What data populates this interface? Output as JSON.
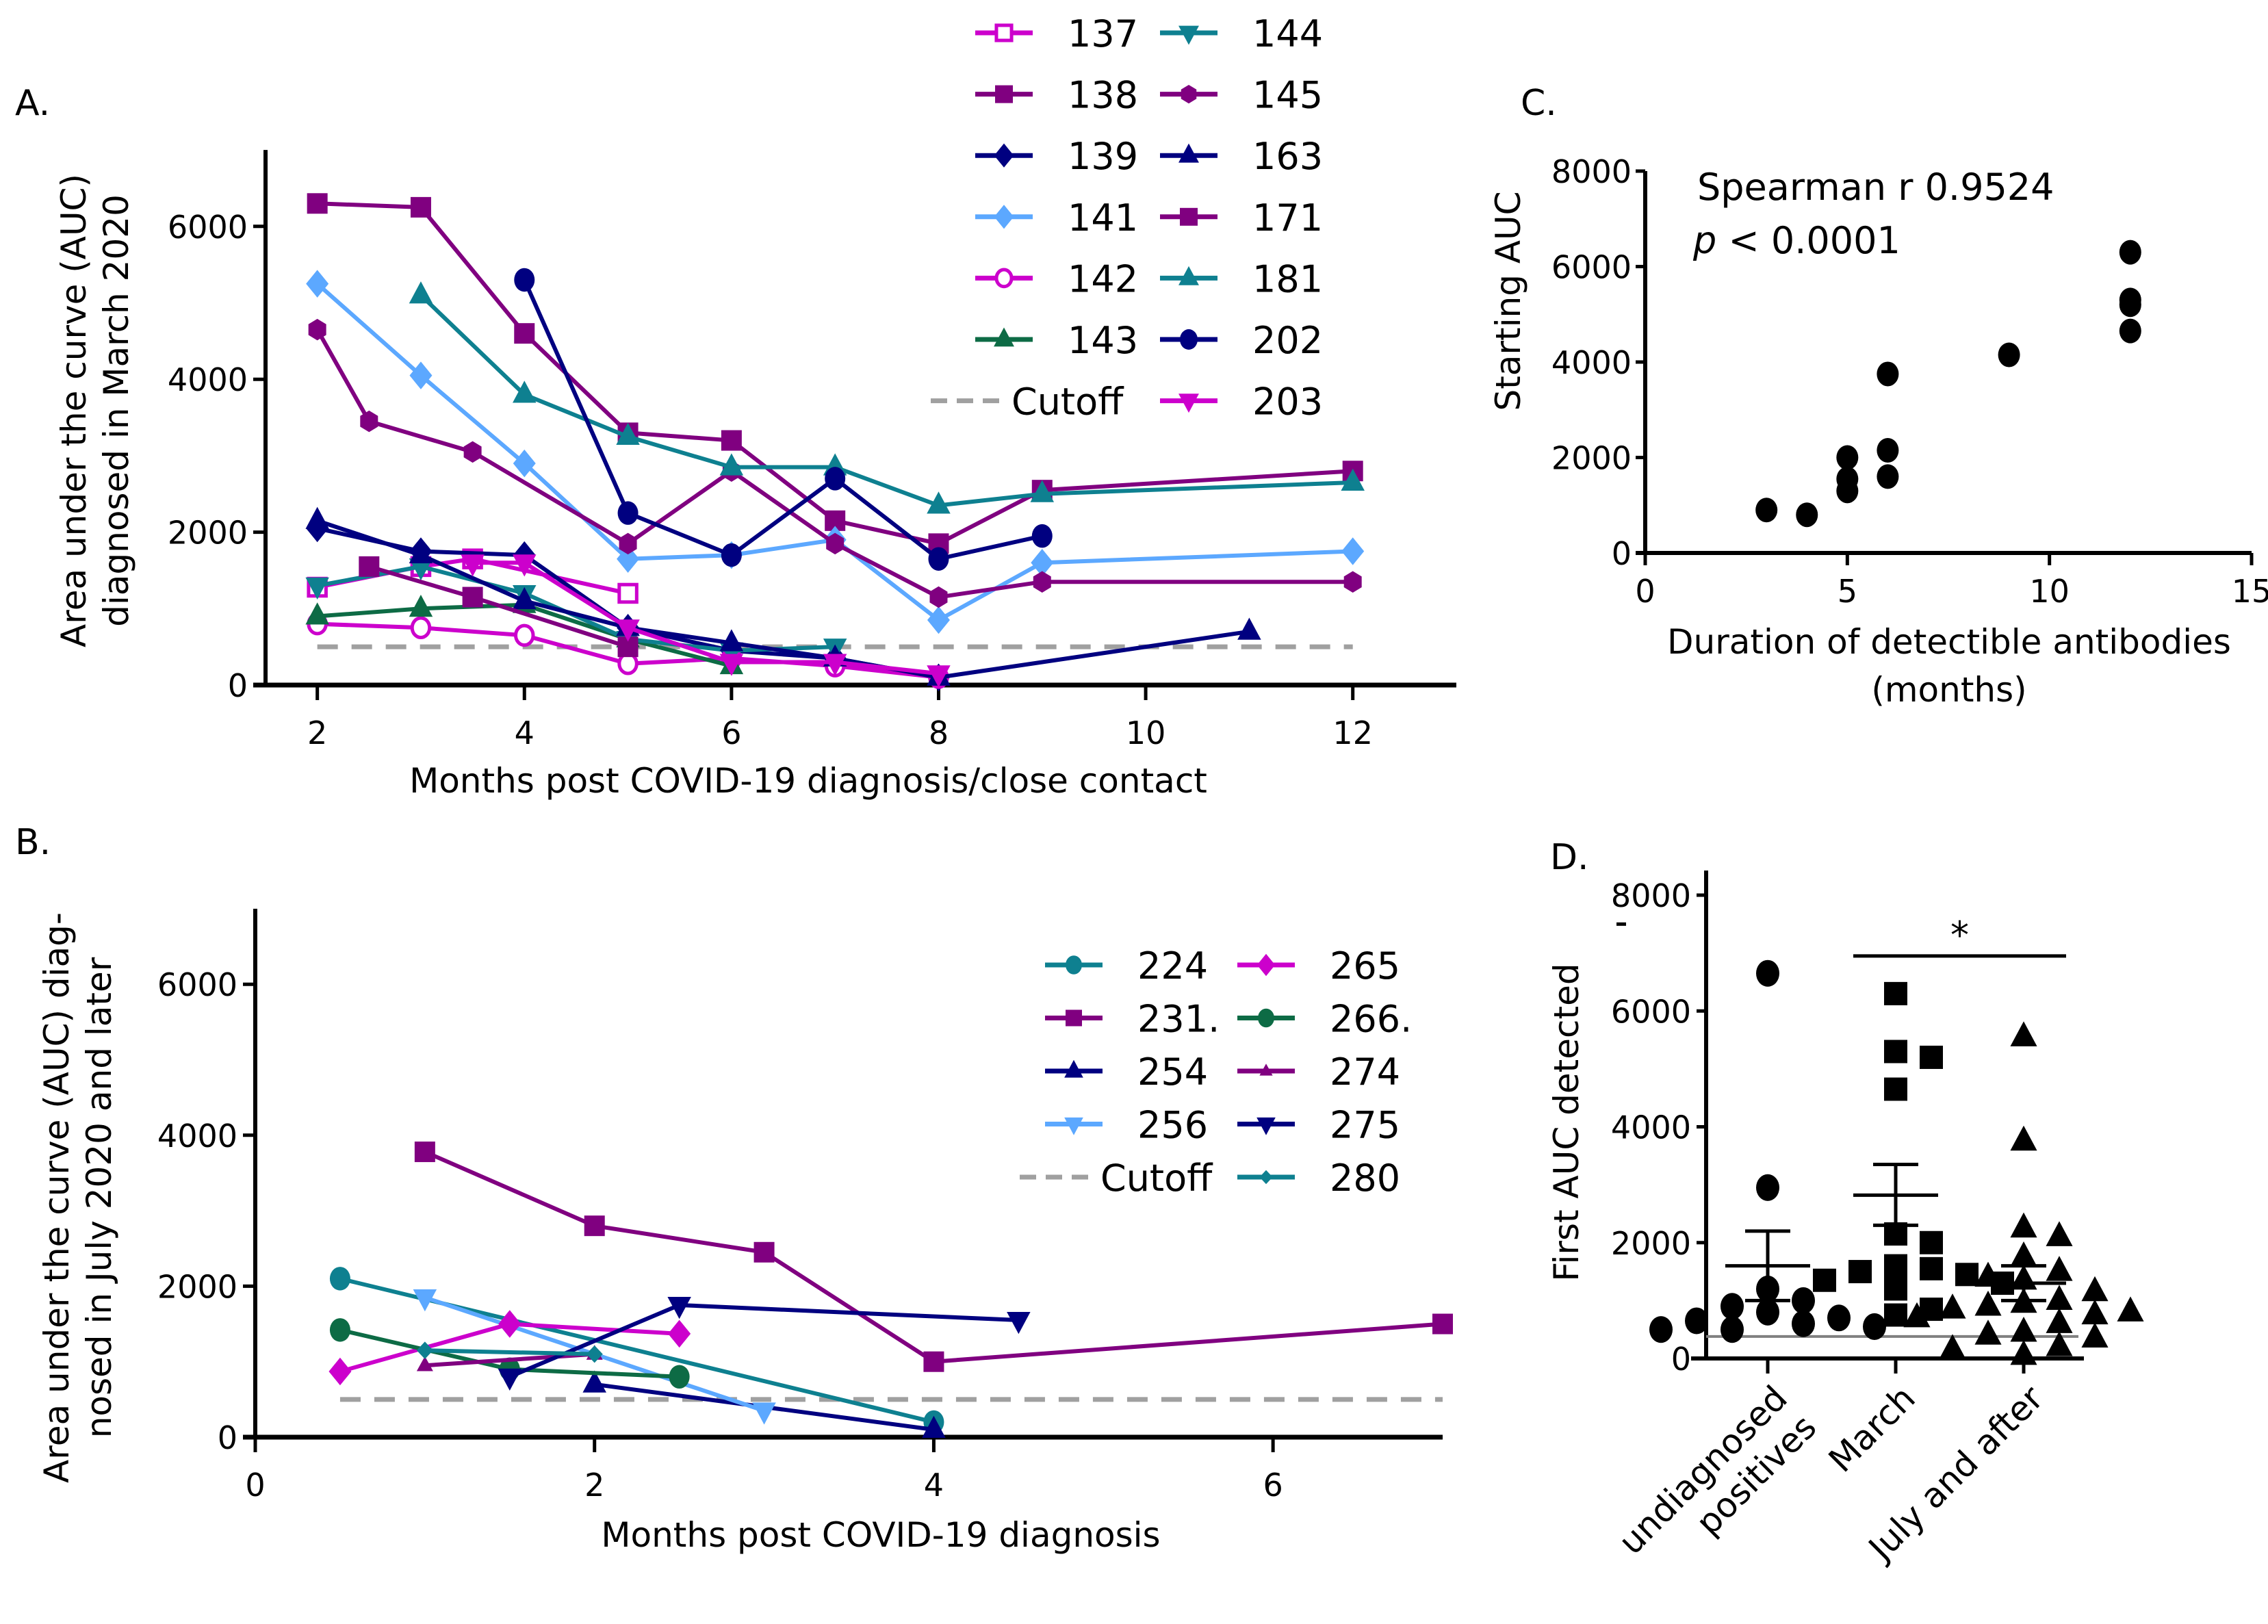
{
  "figure": {
    "panels": [
      "A.",
      "B.",
      "C.",
      "D."
    ]
  },
  "chart_data": [
    {
      "id": "A",
      "type": "line",
      "panel_label": "A.",
      "title": "",
      "xlabel": "Months post COVID-19 diagnosis/close contact",
      "ylabel": [
        "Area under the curve (AUC)",
        "diagnosed in March 2020"
      ],
      "xlim": [
        1.5,
        13
      ],
      "ylim": [
        0,
        7000
      ],
      "xticks": [
        2,
        4,
        6,
        8,
        10,
        12
      ],
      "yticks": [
        0,
        2000,
        4000,
        6000
      ],
      "grid": false,
      "legend_position": "top-right",
      "cutoff": {
        "label": "Cutoff",
        "value": 500,
        "color": "#a0a0a0",
        "xrange": [
          2,
          12
        ]
      },
      "series": [
        {
          "name": "137",
          "color": "#cc00cc",
          "marker": "square-open",
          "x": [
            2,
            3,
            3.5,
            5
          ],
          "y": [
            1280,
            1550,
            1650,
            1200
          ]
        },
        {
          "name": "138",
          "color": "#800080",
          "marker": "square",
          "x": [
            2,
            3,
            4,
            5,
            6,
            7,
            8,
            9,
            12
          ],
          "y": [
            6300,
            6250,
            4600,
            3300,
            3200,
            2150,
            1850,
            2550,
            2800
          ]
        },
        {
          "name": "139",
          "color": "#000080",
          "marker": "diamond",
          "x": [
            2,
            3,
            4,
            5,
            6,
            7,
            8
          ],
          "y": [
            2050,
            1750,
            1700,
            750,
            450,
            350,
            100
          ]
        },
        {
          "name": "141",
          "color": "#5ca8ff",
          "marker": "diamond",
          "x": [
            2,
            3,
            4,
            5,
            6,
            7,
            8,
            9,
            12
          ],
          "y": [
            5250,
            4050,
            2900,
            1650,
            1700,
            1900,
            850,
            1600,
            1750
          ]
        },
        {
          "name": "142",
          "color": "#cc00cc",
          "marker": "circle-open",
          "x": [
            2,
            3,
            4,
            5,
            6,
            7,
            8
          ],
          "y": [
            800,
            750,
            650,
            280,
            350,
            250,
            100
          ]
        },
        {
          "name": "143",
          "color": "#0d6b45",
          "marker": "triangle-up",
          "x": [
            2,
            3,
            4,
            5,
            6
          ],
          "y": [
            900,
            1000,
            1050,
            600,
            250
          ]
        },
        {
          "name": "144",
          "color": "#0e8090",
          "marker": "triangle-down",
          "x": [
            2,
            3,
            4,
            5,
            6,
            7
          ],
          "y": [
            1300,
            1550,
            1200,
            600,
            450,
            500
          ]
        },
        {
          "name": "145",
          "color": "#800080",
          "marker": "hexagon",
          "x": [
            2,
            2.5,
            3.5,
            5,
            6,
            7,
            8,
            9,
            12
          ],
          "y": [
            4650,
            3450,
            3050,
            1850,
            2800,
            1850,
            1150,
            1350,
            1350
          ]
        },
        {
          "name": "163",
          "color": "#000080",
          "marker": "triangle-up",
          "x": [
            2,
            3,
            4,
            5,
            6,
            7,
            8,
            11
          ],
          "y": [
            2150,
            1700,
            1100,
            750,
            550,
            350,
            100,
            700
          ]
        },
        {
          "name": "171",
          "color": "#800080",
          "marker": "square",
          "x": [
            2.5,
            3.5,
            5
          ],
          "y": [
            1550,
            1150,
            500
          ]
        },
        {
          "name": "181",
          "color": "#0e8090",
          "marker": "triangle-up",
          "x": [
            3,
            4,
            5,
            6,
            7,
            8,
            9,
            12
          ],
          "y": [
            5100,
            3800,
            3250,
            2850,
            2850,
            2350,
            2500,
            2650
          ]
        },
        {
          "name": "202",
          "color": "#000080",
          "marker": "circle",
          "x": [
            4,
            5,
            6,
            7,
            8,
            9
          ],
          "y": [
            5300,
            2250,
            1700,
            2700,
            1650,
            1950
          ]
        },
        {
          "name": "203",
          "color": "#cc00cc",
          "marker": "triangle-down",
          "x": [
            3.5,
            4,
            5,
            6,
            7,
            8
          ],
          "y": [
            1600,
            1600,
            750,
            300,
            300,
            150
          ]
        }
      ]
    },
    {
      "id": "B",
      "type": "line",
      "panel_label": "B.",
      "title": "",
      "xlabel": "Months post COVID-19 diagnosis",
      "ylabel": [
        "Area under the curve (AUC)  diag-",
        "nosed in July 2020 and later"
      ],
      "xlim": [
        0,
        7
      ],
      "ylim": [
        0,
        7000
      ],
      "xticks": [
        0,
        2,
        4,
        6
      ],
      "yticks": [
        0,
        2000,
        4000,
        6000
      ],
      "grid": false,
      "legend_position": "top-right",
      "cutoff": {
        "label": "Cutoff",
        "value": 500,
        "color": "#a0a0a0",
        "xrange": [
          0.5,
          7
        ]
      },
      "series": [
        {
          "name": "224",
          "color": "#0e8090",
          "marker": "circle",
          "x": [
            0.5,
            4
          ],
          "y": [
            2100,
            200
          ]
        },
        {
          "name": "231.",
          "color": "#800080",
          "marker": "square",
          "x": [
            1,
            2,
            3,
            4,
            7
          ],
          "y": [
            3780,
            2800,
            2450,
            1000,
            1500
          ]
        },
        {
          "name": "254",
          "color": "#000080",
          "marker": "triangle-up",
          "x": [
            2,
            4
          ],
          "y": [
            700,
            100
          ]
        },
        {
          "name": "256",
          "color": "#5ca8ff",
          "marker": "triangle-down",
          "x": [
            1,
            3
          ],
          "y": [
            1850,
            350
          ]
        },
        {
          "name": "265",
          "color": "#cc00cc",
          "marker": "diamond",
          "x": [
            0.5,
            1.5,
            2.5
          ],
          "y": [
            870,
            1500,
            1370
          ]
        },
        {
          "name": "266.",
          "color": "#0d6b45",
          "marker": "circle",
          "x": [
            0.5,
            1.5,
            2.5
          ],
          "y": [
            1420,
            900,
            800
          ]
        },
        {
          "name": "274",
          "color": "#800080",
          "marker": "triangle-up-small",
          "x": [
            1,
            2
          ],
          "y": [
            950,
            1100
          ]
        },
        {
          "name": "275",
          "color": "#000080",
          "marker": "triangle-down",
          "x": [
            1.5,
            2.5,
            4.5
          ],
          "y": [
            800,
            1750,
            1550
          ]
        },
        {
          "name": "280",
          "color": "#0e8090",
          "marker": "diamond-small",
          "x": [
            1,
            2
          ],
          "y": [
            1150,
            1100
          ]
        }
      ]
    },
    {
      "id": "C",
      "type": "scatter",
      "panel_label": "C.",
      "title": "",
      "xlabel": [
        "Duration of detectible antibodies",
        "(months)"
      ],
      "ylabel": "Starting AUC",
      "xlim": [
        0,
        15
      ],
      "ylim": [
        0,
        8000
      ],
      "xticks": [
        0,
        5,
        10,
        15
      ],
      "yticks": [
        0,
        2000,
        4000,
        6000,
        8000
      ],
      "grid": false,
      "annotation": {
        "line1": "Spearman r 0.9524",
        "line2_italic": "p",
        "line2_rest": " < 0.0001"
      },
      "points": [
        {
          "x": 3,
          "y": 900
        },
        {
          "x": 4,
          "y": 800
        },
        {
          "x": 5,
          "y": 2000
        },
        {
          "x": 5,
          "y": 1550
        },
        {
          "x": 5,
          "y": 1300
        },
        {
          "x": 6,
          "y": 3750
        },
        {
          "x": 6,
          "y": 2150
        },
        {
          "x": 6,
          "y": 1600
        },
        {
          "x": 9,
          "y": 4150
        },
        {
          "x": 12,
          "y": 6300
        },
        {
          "x": 12,
          "y": 5300
        },
        {
          "x": 12,
          "y": 5200
        },
        {
          "x": 12,
          "y": 4650
        }
      ]
    },
    {
      "id": "D",
      "type": "scatter",
      "panel_label": "D.",
      "title": "",
      "xlabel": "",
      "ylabel": "First AUC detected",
      "ylim": [
        0,
        8000
      ],
      "yticks": [
        0,
        2000,
        4000,
        6000,
        8000
      ],
      "categories": [
        "undiagnosed positives",
        "March",
        "July and after"
      ],
      "category_lines": [
        [
          "undiagnosed",
          "positives"
        ],
        [
          "March"
        ],
        [
          "July and after"
        ]
      ],
      "cutoff": {
        "value": 380,
        "color": "#808080"
      },
      "significance": {
        "from": 1,
        "to": 2,
        "label": "*",
        "y": 6950
      },
      "groups": [
        {
          "name": "undiagnosed positives",
          "marker": "circle",
          "mean": 1600,
          "sem_low": 1000,
          "sem_high": 2200,
          "values": [
            6650,
            2950,
            1200,
            1000,
            900,
            800,
            700,
            650,
            600,
            550,
            500,
            500
          ]
        },
        {
          "name": "March",
          "marker": "square",
          "mean": 2820,
          "sem_low": 2300,
          "sem_high": 3350,
          "values": [
            6300,
            5300,
            5200,
            4650,
            2150,
            2000,
            1600,
            1550,
            1500,
            1450,
            1350,
            1300,
            1200,
            850,
            750
          ]
        },
        {
          "name": "July and after",
          "marker": "triangle",
          "mean": 1300,
          "sem_low": 1000,
          "sem_high": 1600,
          "values": [
            5550,
            3750,
            2250,
            2100,
            1750,
            1500,
            1400,
            1350,
            1150,
            1000,
            950,
            900,
            850,
            800,
            750,
            700,
            600,
            450,
            400,
            350,
            200,
            150,
            50
          ]
        }
      ]
    }
  ]
}
